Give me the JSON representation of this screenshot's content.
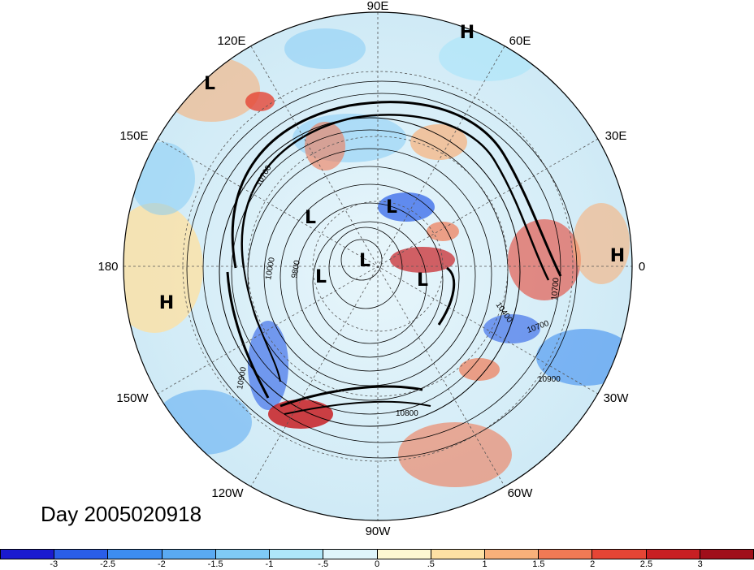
{
  "title": "Day 2005020918",
  "longitude_labels": [
    "90E",
    "60E",
    "30E",
    "0",
    "30W",
    "60W",
    "90W",
    "120W",
    "150W",
    "180",
    "150E",
    "120E"
  ],
  "pressure_centers": [
    "H",
    "L",
    "L",
    "L",
    "L",
    "L",
    "L",
    "H",
    "H"
  ],
  "contour_labels": [
    "10000",
    "9800",
    "10400",
    "10700",
    "10900",
    "10900",
    "10800",
    "10700",
    "10700"
  ],
  "colorbar": {
    "ticks": [
      "-3",
      "-2.5",
      "-2",
      "-1.5",
      "-1",
      "-.5",
      "0",
      ".5",
      "1",
      "1.5",
      "2",
      "2.5",
      "3"
    ],
    "colors": [
      "#1a1ad0",
      "#2a5ee8",
      "#3d8df0",
      "#5aaaf2",
      "#7fcaf5",
      "#aee6f9",
      "#dff5fb",
      "#fdf7d2",
      "#fde1a4",
      "#f8b07a",
      "#f07a55",
      "#e54535",
      "#c81f23",
      "#a00f1a"
    ]
  }
}
